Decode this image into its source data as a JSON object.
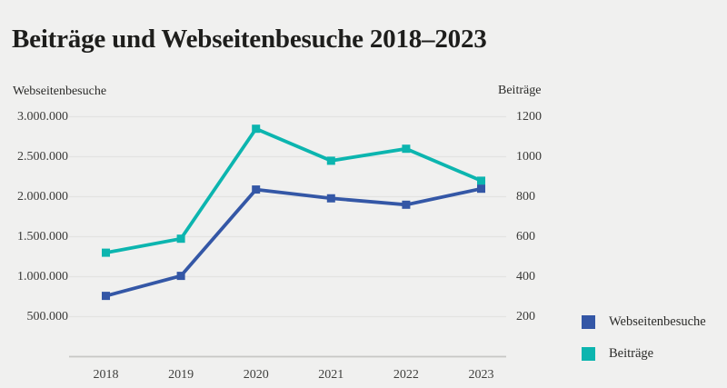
{
  "title": "Beiträge und Webseitenbesuche 2018–2023",
  "left_axis": {
    "title": "Webseitenbesuche",
    "tick_labels": [
      "3.000.000",
      "2.500.000",
      "2.000.000",
      "1.500.000",
      "1.000.000",
      "500.000"
    ],
    "tick_values": [
      3000000,
      2500000,
      2000000,
      1500000,
      1000000,
      500000
    ]
  },
  "right_axis": {
    "title": "Beiträge",
    "tick_labels": [
      "1200",
      "1000",
      "800",
      "600",
      "400",
      "200"
    ],
    "tick_values": [
      1200,
      1000,
      800,
      600,
      400,
      200
    ]
  },
  "legend": [
    {
      "label": "Webseitenbesuche",
      "color": "#3457a6"
    },
    {
      "label": "Beiträge",
      "color": "#0cb5af"
    }
  ],
  "colors": {
    "background": "#f0f0ef",
    "gridline": "#e3e3e1",
    "axis_line": "#c7c7c5",
    "title_text": "#1e1e1c",
    "tick_text": "#3a3a38",
    "series_blue": "#3457a6",
    "series_teal": "#0cb5af"
  },
  "chart_data": {
    "type": "line",
    "title": "Beiträge und Webseitenbesuche 2018–2023",
    "categories": [
      "2018",
      "2019",
      "2020",
      "2021",
      "2022",
      "2023"
    ],
    "series": [
      {
        "name": "Webseitenbesuche",
        "axis": "left",
        "color": "#3457a6",
        "values": [
          760000,
          1010000,
          2090000,
          1980000,
          1900000,
          2100000
        ]
      },
      {
        "name": "Beiträge",
        "axis": "right",
        "color": "#0cb5af",
        "values": [
          520,
          590,
          1140,
          980,
          1040,
          880
        ]
      }
    ],
    "left_ylim": [
      0,
      3000000
    ],
    "right_ylim": [
      0,
      1200
    ],
    "grid": true,
    "marker": "square",
    "legend_position": "bottom-right"
  }
}
